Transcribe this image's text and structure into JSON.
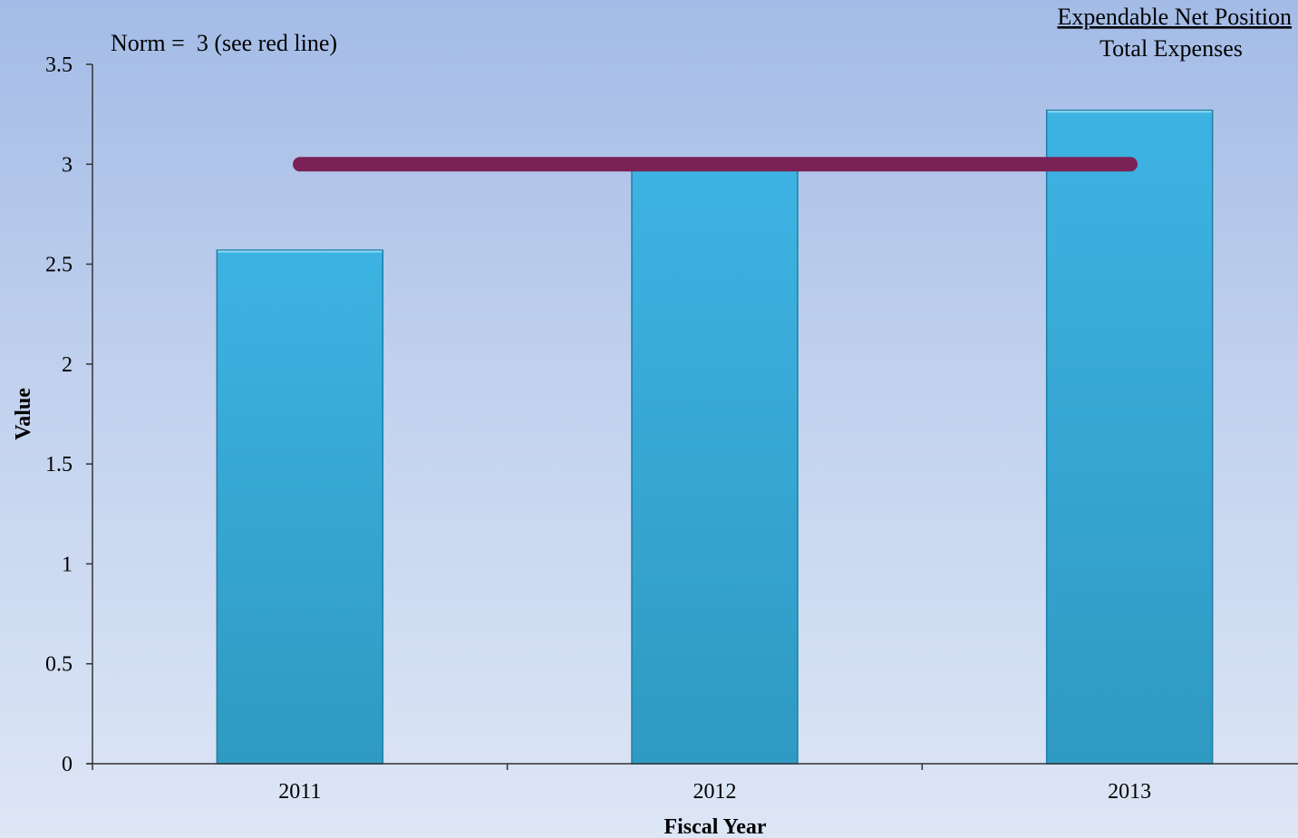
{
  "chart_data": {
    "type": "bar",
    "categories": [
      "2011",
      "2012",
      "2013"
    ],
    "values": [
      2.57,
      2.98,
      3.27
    ],
    "xlabel": "Fiscal Year",
    "ylabel": "Value",
    "ylim": [
      0,
      3.5
    ],
    "yticks": [
      0,
      0.5,
      1,
      1.5,
      2,
      2.5,
      3,
      3.5
    ],
    "ytick_labels": [
      "0",
      "0.5",
      "1",
      "1.5",
      "2",
      "2.5",
      "3",
      "3.5"
    ],
    "norm_value": 3,
    "norm_text": "Norm =  3 (see red line)",
    "ratio_numerator": "Expendable Net Position",
    "ratio_denominator": "Total Expenses",
    "grid": false,
    "colors": {
      "bar": "#39a8d6",
      "norm_line": "#7a2155",
      "axis": "#333333"
    }
  }
}
